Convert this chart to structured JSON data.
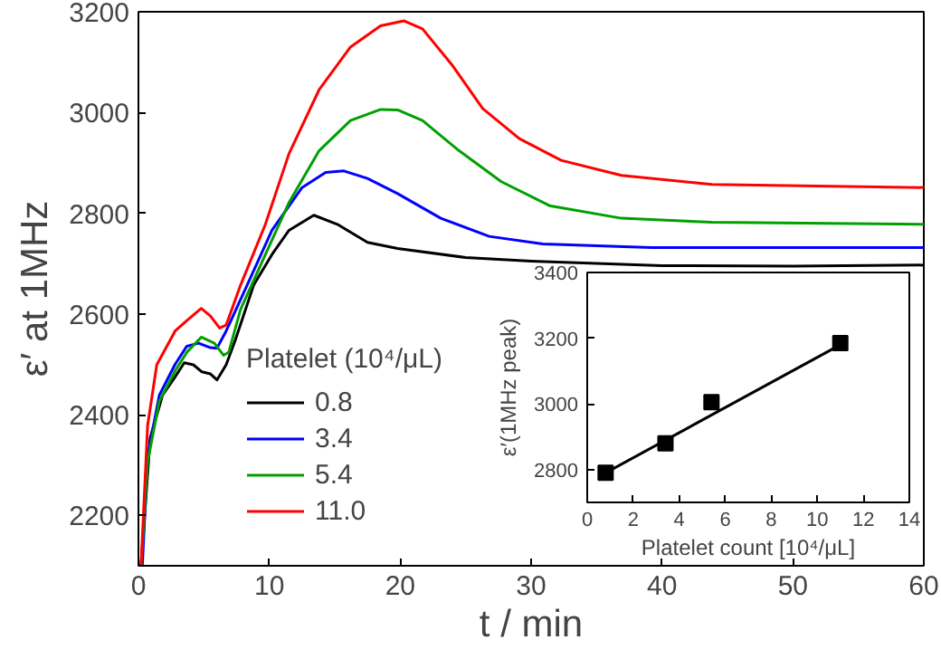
{
  "chart_data": [
    {
      "type": "line",
      "xlabel": "t / min",
      "ylabel": "ε′ at 1MHz",
      "legend_title": "Platelet (10⁴/μL)",
      "legend": "bottom left",
      "grid": false,
      "xlim": [
        0,
        60
      ],
      "xticks": [
        0,
        10,
        20,
        30,
        40,
        50,
        60
      ],
      "ylim": [
        2100,
        3200
      ],
      "yticks": [
        2200,
        2400,
        2600,
        2800,
        3000,
        3200
      ],
      "series": [
        {
          "name": "0.8",
          "color": "#000000",
          "x": [
            0.2,
            0.9,
            1.85,
            2.8,
            3.5,
            4.2,
            4.85,
            5.5,
            6.0,
            6.7,
            7.4,
            8.8,
            10.2,
            11.5,
            13.4,
            15.2,
            17.5,
            19.8,
            25,
            30,
            40,
            50,
            60
          ],
          "values": [
            2100,
            2354,
            2439,
            2475,
            2503,
            2499,
            2485,
            2481,
            2469,
            2499,
            2548,
            2657,
            2718,
            2766,
            2796,
            2778,
            2742,
            2730,
            2712,
            2705,
            2696,
            2695,
            2697
          ]
        },
        {
          "name": "3.4",
          "color": "#0000ff",
          "x": [
            0.3,
            0.7,
            1.6,
            2.8,
            3.7,
            4.6,
            5.5,
            6.0,
            6.7,
            8.3,
            10.2,
            12.5,
            14.3,
            15.7,
            17.5,
            19.8,
            23.1,
            26.8,
            30.9,
            39.2,
            60
          ],
          "values": [
            2100,
            2318,
            2439,
            2500,
            2536,
            2542,
            2533,
            2532,
            2566,
            2657,
            2766,
            2851,
            2881,
            2884,
            2869,
            2839,
            2790,
            2754,
            2739,
            2732,
            2732
          ]
        },
        {
          "name": "5.4",
          "color": "#00a000",
          "x": [
            0.2,
            0.7,
            1.6,
            2.8,
            3.7,
            4.8,
            5.8,
            6.5,
            6.9,
            7.8,
            9.7,
            11.5,
            13.8,
            16.2,
            18.5,
            19.8,
            21.7,
            24.5,
            27.7,
            31.4,
            36.9,
            43.8,
            60
          ],
          "values": [
            2100,
            2306,
            2427,
            2487,
            2524,
            2554,
            2542,
            2518,
            2524,
            2609,
            2718,
            2821,
            2924,
            2984,
            3006,
            3005,
            2984,
            2924,
            2863,
            2815,
            2790,
            2782,
            2778
          ]
        },
        {
          "name": "11.0",
          "color": "#ff0000",
          "x": [
            0.2,
            0.7,
            1.4,
            2.8,
            3.7,
            4.8,
            5.5,
            6.2,
            6.7,
            7.8,
            9.7,
            11.5,
            13.8,
            16.2,
            18.5,
            20.3,
            21.7,
            24.0,
            26.3,
            29.1,
            32.3,
            36.9,
            43.8,
            60
          ],
          "values": [
            2100,
            2378,
            2499,
            2566,
            2587,
            2611,
            2596,
            2572,
            2578,
            2657,
            2778,
            2918,
            3045,
            3130,
            3172,
            3182,
            3166,
            3093,
            3008,
            2948,
            2905,
            2875,
            2857,
            2851
          ]
        }
      ]
    },
    {
      "type": "scatter",
      "xlabel": "Platelet count [10⁴/μL]",
      "ylabel": "ε′(1MHz peak)",
      "grid": false,
      "xlim": [
        0,
        14
      ],
      "xticks": [
        0,
        2,
        4,
        6,
        8,
        10,
        12,
        14
      ],
      "ylim": [
        2700,
        3400
      ],
      "yticks": [
        2800,
        3000,
        3200,
        3400
      ],
      "series": [
        {
          "color": "#000000",
          "marker": "square",
          "x": [
            0.8,
            3.4,
            5.4,
            11.0
          ],
          "values": [
            2790,
            2880,
            3005,
            3185
          ]
        },
        {
          "type": "line",
          "color": "#000000",
          "x": [
            0.8,
            11.0
          ],
          "values": [
            2790,
            3180
          ]
        }
      ]
    }
  ]
}
